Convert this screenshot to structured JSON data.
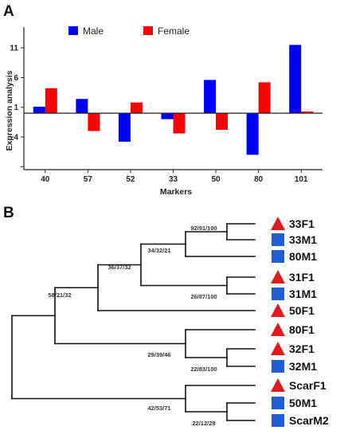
{
  "panel_a_label": "A",
  "panel_b_label": "B",
  "chart_data": [
    {
      "type": "bar",
      "xlabel": "Markers",
      "ylabel": "Expression analysis",
      "categories": [
        "40",
        "57",
        "52",
        "33",
        "50",
        "80",
        "101"
      ],
      "series": [
        {
          "name": "Male",
          "color": "#0000ff",
          "values": [
            1.1,
            2.4,
            -4.8,
            -1.0,
            5.6,
            -7.0,
            11.5
          ]
        },
        {
          "name": "Female",
          "color": "#ff0000",
          "values": [
            4.2,
            -3.0,
            1.8,
            -3.4,
            -2.8,
            5.2,
            0.3
          ]
        }
      ],
      "yticks": [
        11,
        6,
        1,
        -4
      ],
      "ylim": [
        -9.5,
        14.5
      ],
      "legend_position": "top-left",
      "grid": false
    },
    {
      "type": "dendrogram",
      "leaves": [
        {
          "label": "33F1",
          "marker": "triangle"
        },
        {
          "label": "33M1",
          "marker": "square"
        },
        {
          "label": "80M1",
          "marker": "square"
        },
        {
          "label": "31F1",
          "marker": "triangle"
        },
        {
          "label": "31M1",
          "marker": "square"
        },
        {
          "label": "50F1",
          "marker": "triangle"
        },
        {
          "label": "80F1",
          "marker": "triangle"
        },
        {
          "label": "32F1",
          "marker": "triangle"
        },
        {
          "label": "32M1",
          "marker": "square"
        },
        {
          "label": "ScarF1",
          "marker": "triangle"
        },
        {
          "label": "50M1",
          "marker": "square"
        },
        {
          "label": "ScarM2",
          "marker": "square"
        }
      ],
      "support_values": [
        "92/91/100",
        "34/32/21",
        "36/37/32",
        "26/87/100",
        "58/21/32",
        "29/39/46",
        "22/83/100",
        "42/53/71",
        "22/12/28"
      ],
      "marker_colors": {
        "triangle": "#e31a1c",
        "square": "#1f5fd1"
      }
    }
  ]
}
